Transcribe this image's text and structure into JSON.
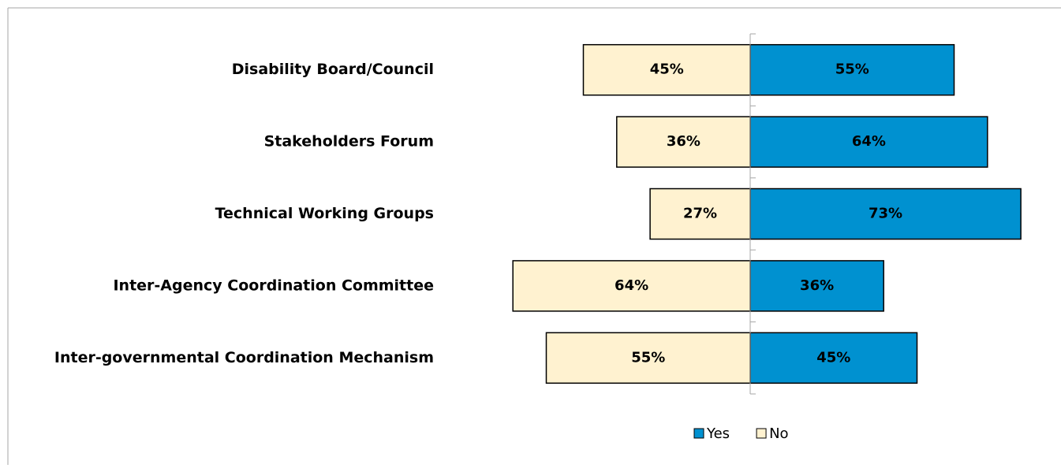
{
  "chart_data": {
    "type": "diverging-bar",
    "categories": [
      "Disability Board/Council",
      "Stakeholders Forum",
      "Technical Working Groups",
      "Inter-Agency Coordination Committee",
      "Inter-governmental Coordination Mechanism"
    ],
    "series": [
      {
        "name": "Yes",
        "color": "#0091d0",
        "values": [
          55,
          64,
          73,
          36,
          45
        ],
        "value_labels": [
          "55%",
          "64%",
          "73%",
          "36%",
          "45%"
        ]
      },
      {
        "name": "No",
        "color": "#fff2d0",
        "values": [
          45,
          36,
          27,
          64,
          55
        ],
        "value_labels": [
          "45%",
          "36%",
          "27%",
          "64%",
          "55%"
        ]
      }
    ],
    "xlim": [
      0,
      100
    ],
    "legend": "bottom"
  }
}
